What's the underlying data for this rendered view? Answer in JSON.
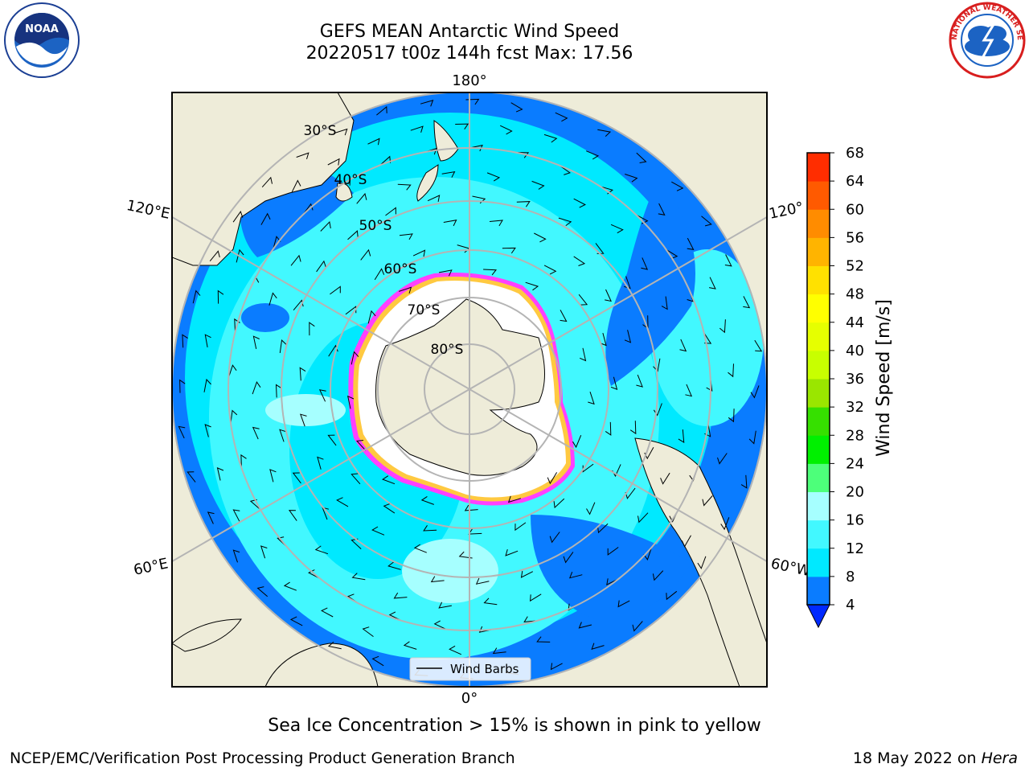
{
  "title": {
    "line1": "GEFS MEAN Antarctic Wind Speed",
    "line2": "20220517 t00z 144h fcst   Max: 17.56"
  },
  "map": {
    "projection": "south-polar-stereographic",
    "lon_labels": {
      "top": "180°",
      "bottom": "0°",
      "left_upper": "120°E",
      "left_lower": "60°E",
      "right_upper": "120°",
      "right_lower": "60°W"
    },
    "lat_labels": [
      "30°S",
      "40°S",
      "50°S",
      "60°S",
      "70°S",
      "80°S"
    ],
    "legend_label": "Wind Barbs",
    "colors": {
      "land": "#eeecd9",
      "ice": "#ffffff",
      "ice_edge_pink": "#ff40ff",
      "ice_edge_yellow": "#ffc940",
      "wind_4_8": "#0a7cff",
      "wind_8_12": "#00e9ff",
      "wind_12_16": "#42f8ff",
      "wind_16_20": "#a6ffff",
      "below_4": "#0029ff",
      "gridline": "#b4b4b4"
    }
  },
  "colorbar": {
    "label": "Wind Speed [m/s]",
    "ticks": [
      "4",
      "8",
      "12",
      "16",
      "20",
      "24",
      "28",
      "32",
      "36",
      "40",
      "44",
      "48",
      "52",
      "56",
      "60",
      "64",
      "68"
    ],
    "colors": [
      "#0a7cff",
      "#00e9ff",
      "#42f8ff",
      "#a6ffff",
      "#4dff7a",
      "#00f000",
      "#36e000",
      "#9ae600",
      "#c8ff00",
      "#e6ff00",
      "#ffff00",
      "#ffe100",
      "#ffb400",
      "#ff8c00",
      "#ff5a00",
      "#ff2d00"
    ],
    "under_color": "#0029ff"
  },
  "footer_note": "Sea Ice Concentration > 15% is shown in pink to yellow",
  "credit_left": "NCEP/EMC/Verification Post Processing Product Generation Branch",
  "credit_right_prefix": "18 May 2022 on ",
  "credit_right_host": "Hera",
  "logos": {
    "noaa": "NOAA",
    "nws": "NATIONAL WEATHER SERVICE"
  }
}
